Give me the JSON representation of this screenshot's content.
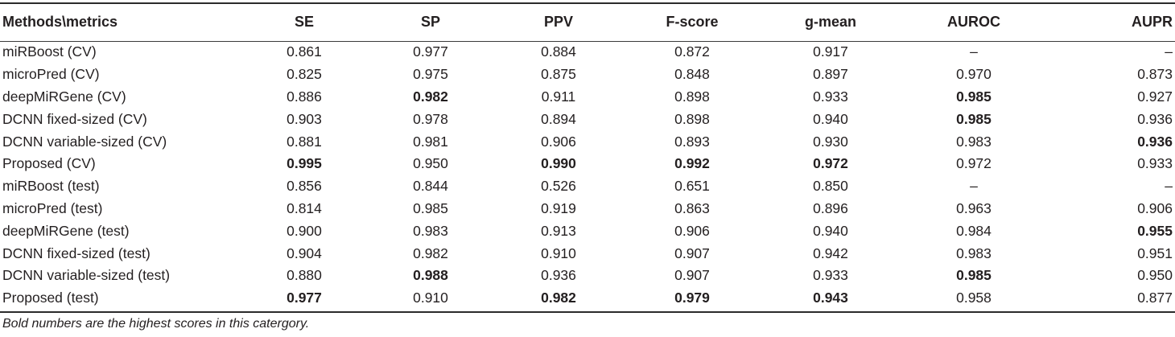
{
  "headers": [
    "Methods\\metrics",
    "SE",
    "SP",
    "PPV",
    "F-score",
    "g-mean",
    "AUROC",
    "AUPR"
  ],
  "rows": [
    {
      "method": "miRBoost (CV)",
      "values": [
        "0.861",
        "0.977",
        "0.884",
        "0.872",
        "0.917",
        "–",
        "–"
      ],
      "bold": []
    },
    {
      "method": "microPred (CV)",
      "values": [
        "0.825",
        "0.975",
        "0.875",
        "0.848",
        "0.897",
        "0.970",
        "0.873"
      ],
      "bold": []
    },
    {
      "method": "deepMiRGene (CV)",
      "values": [
        "0.886",
        "0.982",
        "0.911",
        "0.898",
        "0.933",
        "0.985",
        "0.927"
      ],
      "bold": [
        1,
        5
      ]
    },
    {
      "method": "DCNN fixed-sized (CV)",
      "values": [
        "0.903",
        "0.978",
        "0.894",
        "0.898",
        "0.940",
        "0.985",
        "0.936"
      ],
      "bold": [
        5
      ]
    },
    {
      "method": "DCNN variable-sized (CV)",
      "values": [
        "0.881",
        "0.981",
        "0.906",
        "0.893",
        "0.930",
        "0.983",
        "0.936"
      ],
      "bold": [
        6
      ]
    },
    {
      "method": "Proposed (CV)",
      "values": [
        "0.995",
        "0.950",
        "0.990",
        "0.992",
        "0.972",
        "0.972",
        "0.933"
      ],
      "bold": [
        0,
        2,
        3,
        4
      ]
    },
    {
      "method": "miRBoost (test)",
      "values": [
        "0.856",
        "0.844",
        "0.526",
        "0.651",
        "0.850",
        "–",
        "–"
      ],
      "bold": []
    },
    {
      "method": "microPred (test)",
      "values": [
        "0.814",
        "0.985",
        "0.919",
        "0.863",
        "0.896",
        "0.963",
        "0.906"
      ],
      "bold": []
    },
    {
      "method": "deepMiRGene (test)",
      "values": [
        "0.900",
        "0.983",
        "0.913",
        "0.906",
        "0.940",
        "0.984",
        "0.955"
      ],
      "bold": [
        6
      ]
    },
    {
      "method": "DCNN fixed-sized (test)",
      "values": [
        "0.904",
        "0.982",
        "0.910",
        "0.907",
        "0.942",
        "0.983",
        "0.951"
      ],
      "bold": []
    },
    {
      "method": "DCNN variable-sized (test)",
      "values": [
        "0.880",
        "0.988",
        "0.936",
        "0.907",
        "0.933",
        "0.985",
        "0.950"
      ],
      "bold": [
        1,
        5
      ]
    },
    {
      "method": "Proposed (test)",
      "values": [
        "0.977",
        "0.910",
        "0.982",
        "0.979",
        "0.943",
        "0.958",
        "0.877"
      ],
      "bold": [
        0,
        2,
        3,
        4
      ]
    }
  ],
  "footnote": "Bold numbers are the highest scores in this catergory."
}
